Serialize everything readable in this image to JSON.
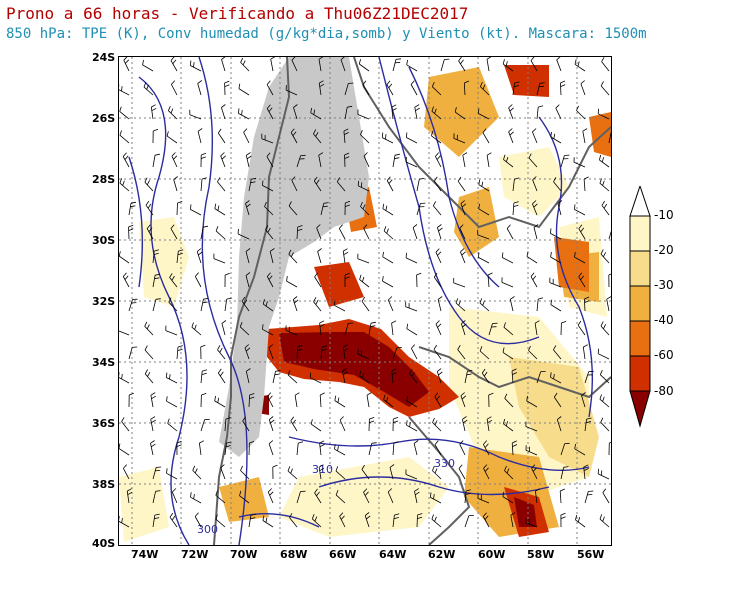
{
  "header": {
    "title": "Prono a 66 horas - Verificando a Thu06Z21DEC2017",
    "subtitle": "850 hPa: TPE (K), Conv humedad (g/kg*dia,somb) y Viento (kt). Mascara: 1500m"
  },
  "map": {
    "lat_labels": [
      "24S",
      "26S",
      "28S",
      "30S",
      "32S",
      "34S",
      "36S",
      "38S",
      "40S"
    ],
    "lon_labels": [
      "74W",
      "72W",
      "70W",
      "68W",
      "66W",
      "64W",
      "62W",
      "60W",
      "58W",
      "56W"
    ],
    "contour_labels": [
      "310",
      "330",
      "300"
    ]
  },
  "colorbar": {
    "labels": [
      "-10",
      "-20",
      "-30",
      "-40",
      "-60",
      "-80"
    ],
    "colors": [
      "#fff6c8",
      "#f7dc8c",
      "#f0b040",
      "#e87010",
      "#d03000",
      "#8a0000"
    ]
  },
  "colors": {
    "title": "#b40000",
    "subtitle": "#1f8fb3",
    "contours": "#2c2ca0",
    "mask": "#c8c8c8",
    "grid": "#808080"
  }
}
